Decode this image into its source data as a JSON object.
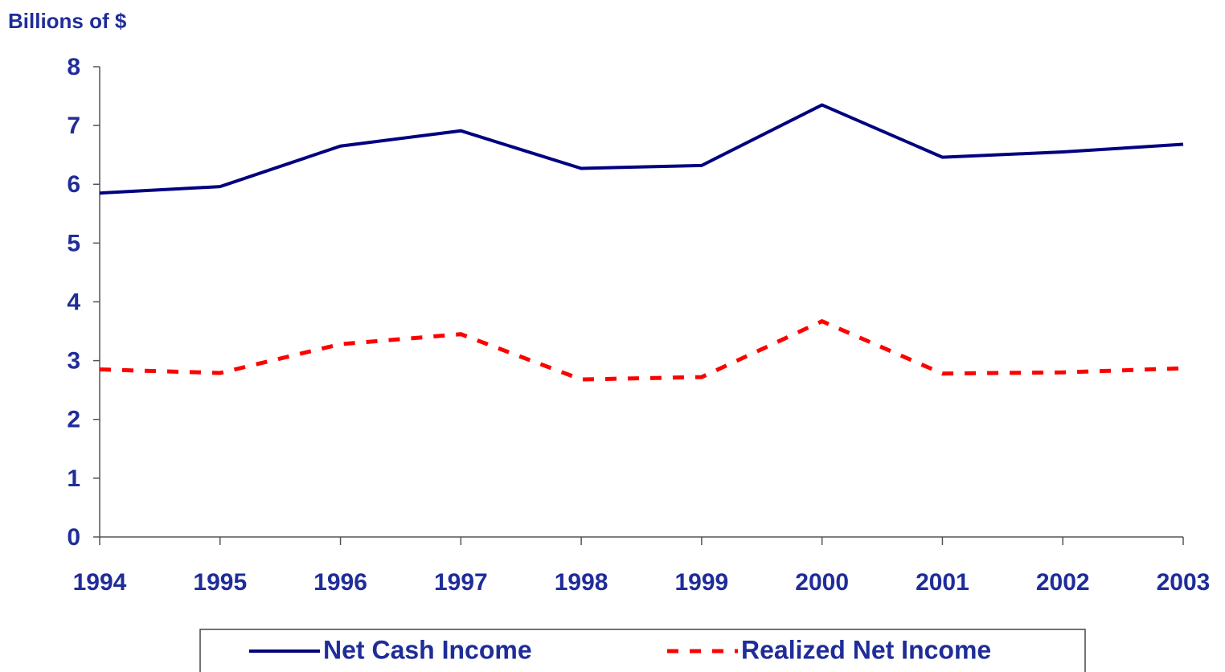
{
  "chart_data": {
    "type": "line",
    "y_label": "Billions of $",
    "categories": [
      "1994",
      "1995",
      "1996",
      "1997",
      "1998",
      "1999",
      "2000",
      "2001",
      "2002",
      "2003"
    ],
    "series": [
      {
        "name": "Net Cash Income",
        "color": "#000080",
        "dash": false,
        "values": [
          5.85,
          5.96,
          6.65,
          6.91,
          6.27,
          6.32,
          7.35,
          6.46,
          6.55,
          6.68
        ]
      },
      {
        "name": "Realized Net Income",
        "color": "#ff0000",
        "dash": true,
        "values": [
          2.85,
          2.79,
          3.28,
          3.45,
          2.68,
          2.72,
          3.67,
          2.78,
          2.8,
          2.87
        ]
      }
    ],
    "ylim": [
      0,
      8
    ],
    "yticks": [
      0,
      1,
      2,
      3,
      4,
      5,
      6,
      7,
      8
    ],
    "grid": false,
    "legend": "bottom"
  }
}
